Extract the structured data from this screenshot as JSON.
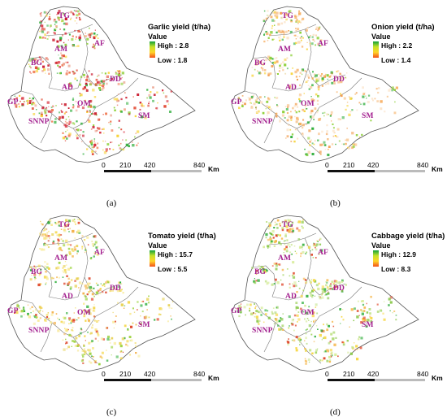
{
  "panels": [
    {
      "caption": "(a)",
      "legend": {
        "title": "Garlic yield (t/ha)",
        "subtitle": "Value",
        "high": "High : 2.8",
        "low": "Low : 1.8"
      },
      "tint": "red"
    },
    {
      "caption": "(b)",
      "legend": {
        "title": "Onion yield (t/ha)",
        "subtitle": "Value",
        "high": "High : 2.2",
        "low": "Low : 1.4"
      },
      "tint": "orange"
    },
    {
      "caption": "(c)",
      "legend": {
        "title": "Tomato yield (t/ha)",
        "subtitle": "Value",
        "high": "High : 15.7",
        "low": "Low : 5.5"
      },
      "tint": "yellow"
    },
    {
      "caption": "(d)",
      "legend": {
        "title": "Cabbage yield (t/ha)",
        "subtitle": "Value",
        "high": "High : 12.9",
        "low": "Low : 8.3"
      },
      "tint": "green"
    }
  ],
  "regions": [
    "TG",
    "AF",
    "AM",
    "BG",
    "AD",
    "DD",
    "GP",
    "OM",
    "SNNP",
    "SM"
  ],
  "scale": {
    "ticks": [
      "0",
      "210",
      "420",
      "840"
    ],
    "unit": "Km"
  },
  "colors": {
    "label": "#a3208f",
    "high": "#13a23a",
    "low": "#f24f1a",
    "border": "#555555"
  }
}
